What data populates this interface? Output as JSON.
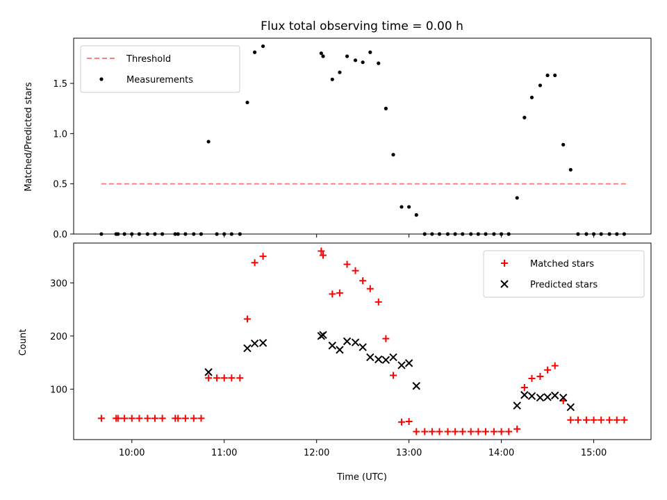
{
  "figure": {
    "title": "Flux total observing time = 0.00 h",
    "xlabel": "Time (UTC)",
    "x_tick_labels": [
      "10:00",
      "11:00",
      "12:00",
      "13:00",
      "14:00",
      "15:00"
    ],
    "x_tick_hours": [
      10,
      11,
      12,
      13,
      14,
      15
    ]
  },
  "colors": {
    "threshold": "#ff7f7f",
    "measurements": "#000000",
    "matched": "#ff0000",
    "predicted": "#000000"
  },
  "chart_data": [
    {
      "type": "scatter",
      "ylabel": "Matched/Predicted stars",
      "xlim": [
        9.37,
        15.62
      ],
      "ylim": [
        0,
        1.95
      ],
      "yticks": [
        0.0,
        0.5,
        1.0,
        1.5
      ],
      "ytick_labels": [
        "0.0",
        "0.5",
        "1.0",
        "1.5"
      ],
      "legend_position": "upper-left",
      "legend": [
        "Threshold",
        "Measurements"
      ],
      "threshold": {
        "name": "Threshold",
        "value": 0.5,
        "x_range": [
          9.67,
          15.35
        ]
      },
      "series": [
        {
          "name": "Measurements",
          "x": [
            9.67,
            9.83,
            9.85,
            9.92,
            10.0,
            10.08,
            10.17,
            10.25,
            10.33,
            10.47,
            10.5,
            10.58,
            10.67,
            10.75,
            10.83,
            10.92,
            11.0,
            11.08,
            11.17,
            11.25,
            11.33,
            11.42,
            12.05,
            12.07,
            12.17,
            12.25,
            12.33,
            12.42,
            12.5,
            12.58,
            12.67,
            12.75,
            12.83,
            12.92,
            13.0,
            13.08,
            13.17,
            13.25,
            13.33,
            13.42,
            13.5,
            13.58,
            13.67,
            13.75,
            13.83,
            13.92,
            14.0,
            14.08,
            14.17,
            14.25,
            14.33,
            14.42,
            14.5,
            14.58,
            14.67,
            14.75,
            14.83,
            14.92,
            15.0,
            15.08,
            15.17,
            15.25,
            15.33
          ],
          "y": [
            0.0,
            0.0,
            0.0,
            0.0,
            0.0,
            0.0,
            0.0,
            0.0,
            0.0,
            0.0,
            0.0,
            0.0,
            0.0,
            0.0,
            0.92,
            0.0,
            0.0,
            0.0,
            0.0,
            1.31,
            1.81,
            1.87,
            1.8,
            1.77,
            1.54,
            1.61,
            1.77,
            1.73,
            1.71,
            1.81,
            1.7,
            1.25,
            0.79,
            0.27,
            0.27,
            0.19,
            0.0,
            0.0,
            0.0,
            0.0,
            0.0,
            0.0,
            0.0,
            0.0,
            0.0,
            0.0,
            0.0,
            0.0,
            0.36,
            1.16,
            1.36,
            1.48,
            1.58,
            1.58,
            0.89,
            0.64,
            0.0,
            0.0,
            0.0,
            0.0,
            0.0,
            0.0,
            0.0
          ]
        }
      ]
    },
    {
      "type": "scatter",
      "ylabel": "Count",
      "xlim": [
        9.37,
        15.62
      ],
      "ylim": [
        5,
        375
      ],
      "yticks": [
        100,
        200,
        300
      ],
      "ytick_labels": [
        "100",
        "200",
        "300"
      ],
      "legend_position": "upper-right",
      "legend": [
        "Matched stars",
        "Predicted stars"
      ],
      "series": [
        {
          "name": "Matched stars",
          "marker": "+",
          "x": [
            9.67,
            9.83,
            9.85,
            9.92,
            10.0,
            10.08,
            10.17,
            10.25,
            10.33,
            10.47,
            10.5,
            10.58,
            10.67,
            10.75,
            10.83,
            10.92,
            11.0,
            11.08,
            11.17,
            11.25,
            11.33,
            11.42,
            12.05,
            12.07,
            12.17,
            12.25,
            12.33,
            12.42,
            12.5,
            12.58,
            12.67,
            12.75,
            12.83,
            12.92,
            13.0,
            13.08,
            13.17,
            13.25,
            13.33,
            13.42,
            13.5,
            13.58,
            13.67,
            13.75,
            13.83,
            13.92,
            14.0,
            14.08,
            14.17,
            14.25,
            14.33,
            14.42,
            14.5,
            14.58,
            14.67,
            14.75,
            14.83,
            14.92,
            15.0,
            15.08,
            15.17,
            15.25,
            15.33
          ],
          "y": [
            45,
            45,
            45,
            45,
            45,
            45,
            45,
            45,
            45,
            45,
            45,
            45,
            45,
            45,
            121,
            121,
            121,
            121,
            121,
            232,
            338,
            350,
            360,
            352,
            279,
            281,
            335,
            323,
            304,
            289,
            264,
            195,
            126,
            38,
            39,
            20,
            20,
            20,
            20,
            20,
            20,
            20,
            20,
            20,
            20,
            20,
            20,
            20,
            25,
            103,
            120,
            124,
            136,
            144,
            78,
            42,
            42,
            42,
            42,
            42,
            42,
            42,
            42
          ]
        },
        {
          "name": "Predicted stars",
          "marker": "x",
          "x": [
            10.83,
            11.25,
            11.33,
            11.42,
            12.05,
            12.07,
            12.17,
            12.25,
            12.33,
            12.42,
            12.5,
            12.58,
            12.67,
            12.75,
            12.83,
            12.92,
            13.0,
            13.08,
            14.17,
            14.25,
            14.33,
            14.42,
            14.5,
            14.58,
            14.67,
            14.75
          ],
          "y": [
            132,
            177,
            186,
            187,
            200,
            202,
            182,
            174,
            190,
            188,
            179,
            160,
            156,
            155,
            160,
            145,
            149,
            106,
            69,
            89,
            87,
            84,
            85,
            88,
            84,
            66
          ]
        }
      ]
    }
  ]
}
